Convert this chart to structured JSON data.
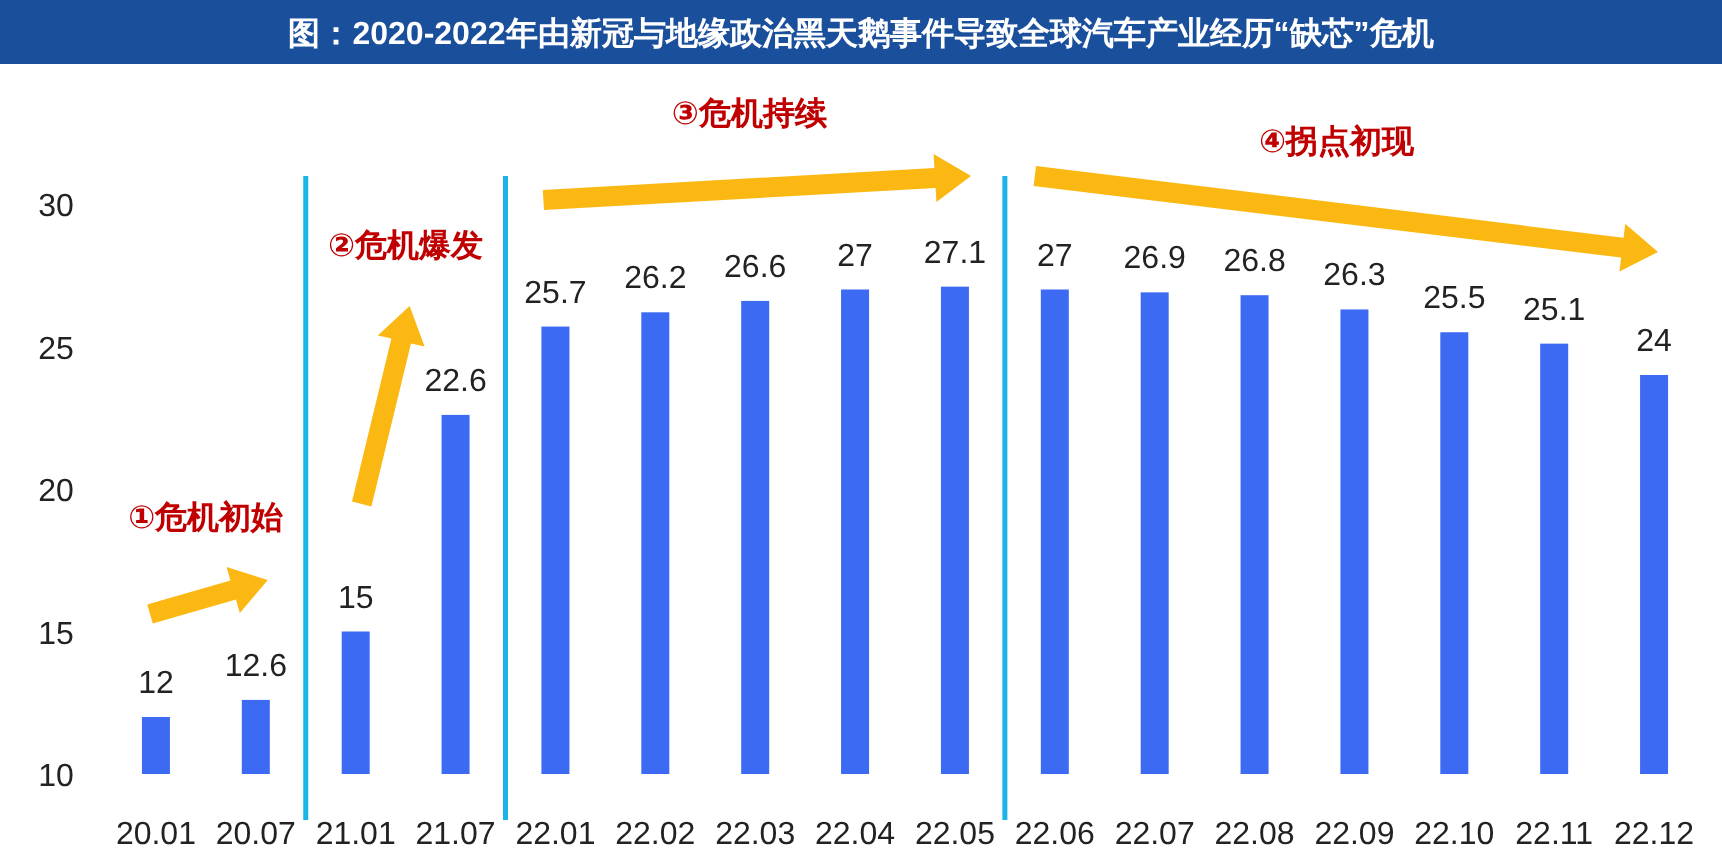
{
  "chart_data": {
    "type": "bar",
    "title": "图：2020-2022年由新冠与地缘政治黑天鹅事件导致全球汽车产业经历“缺芯”危机",
    "categories": [
      "20.01",
      "20.07",
      "21.01",
      "21.07",
      "22.01",
      "22.02",
      "22.03",
      "22.04",
      "22.05",
      "22.06",
      "22.07",
      "22.08",
      "22.09",
      "22.10",
      "22.11",
      "22.12"
    ],
    "values": [
      12,
      12.6,
      15,
      22.6,
      25.7,
      26.2,
      26.6,
      27,
      27.1,
      27,
      26.9,
      26.8,
      26.3,
      25.5,
      25.1,
      24
    ],
    "color": "#3d6af2",
    "ylim": [
      10,
      30
    ],
    "yticks": [
      10,
      15,
      20,
      25,
      30
    ],
    "grid": false,
    "data_labels": true,
    "annotations": [
      "①危机初始",
      "②危机爆发",
      "③危机持续",
      "④拐点初现"
    ]
  }
}
